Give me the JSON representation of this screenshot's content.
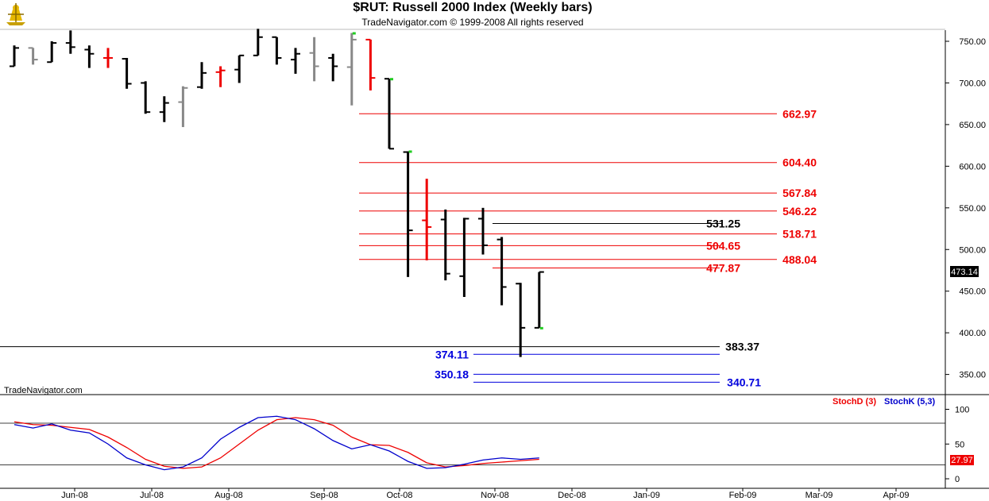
{
  "header": {
    "title": "$RUT:  Russell 2000 Index  (Weekly bars)",
    "subtitle": "TradeNavigator.com © 1999-2008 All rights reserved",
    "watermark": "TradeNavigator.com"
  },
  "chart_data": [
    {
      "type": "ohlc",
      "title": "$RUT:  Russell 2000 Index  (Weekly bars)",
      "ylim": [
        320,
        770
      ],
      "y_ticks": [
        "750.00",
        "700.00",
        "650.00",
        "600.00",
        "550.00",
        "500.00",
        "450.00",
        "400.00",
        "350.00"
      ],
      "last_value_label": "473.14",
      "x_labels": [
        "Jun-08",
        "Jul-08",
        "Aug-08",
        "Sep-08",
        "Oct-08",
        "Nov-08",
        "Dec-08",
        "Jan-09",
        "Feb-09",
        "Mar-09",
        "Apr-09"
      ],
      "colors": {
        "up": "#000000",
        "neutral": "#888888",
        "down": "#ee0000",
        "accent": "#22cc22"
      },
      "bars": [
        {
          "h": 745,
          "l": 720,
          "o": 720,
          "c": 742,
          "color": "black"
        },
        {
          "h": 742,
          "l": 722,
          "o": 742,
          "c": 728,
          "color": "gray"
        },
        {
          "h": 750,
          "l": 725,
          "o": 725,
          "c": 748,
          "color": "black"
        },
        {
          "h": 763,
          "l": 735,
          "o": 748,
          "c": 743,
          "color": "black"
        },
        {
          "h": 745,
          "l": 718,
          "o": 740,
          "c": 735,
          "color": "black"
        },
        {
          "h": 742,
          "l": 718,
          "o": 730,
          "c": 730,
          "color": "red"
        },
        {
          "h": 730,
          "l": 693,
          "o": 729,
          "c": 699,
          "color": "black"
        },
        {
          "h": 702,
          "l": 663,
          "o": 700,
          "c": 665,
          "color": "black"
        },
        {
          "h": 684,
          "l": 653,
          "o": 665,
          "c": 676,
          "color": "black"
        },
        {
          "h": 696,
          "l": 647,
          "o": 677,
          "c": 694,
          "color": "gray"
        },
        {
          "h": 725,
          "l": 693,
          "o": 695,
          "c": 712,
          "color": "black"
        },
        {
          "h": 720,
          "l": 695,
          "o": 713,
          "c": 715,
          "color": "red"
        },
        {
          "h": 733,
          "l": 700,
          "o": 716,
          "c": 733,
          "color": "black"
        },
        {
          "h": 765,
          "l": 733,
          "o": 733,
          "c": 755,
          "color": "black"
        },
        {
          "h": 755,
          "l": 722,
          "o": 755,
          "c": 730,
          "color": "black"
        },
        {
          "h": 742,
          "l": 711,
          "o": 728,
          "c": 735,
          "color": "black"
        },
        {
          "h": 755,
          "l": 702,
          "o": 736,
          "c": 720,
          "color": "gray"
        },
        {
          "h": 735,
          "l": 702,
          "o": 730,
          "c": 720,
          "color": "black"
        },
        {
          "h": 760,
          "l": 673,
          "o": 719,
          "c": 752,
          "color": "gray"
        },
        {
          "h": 752,
          "l": 691,
          "o": 752,
          "c": 706,
          "color": "red"
        },
        {
          "h": 705,
          "l": 621,
          "o": 705,
          "c": 621,
          "color": "black"
        },
        {
          "h": 618,
          "l": 467,
          "o": 617,
          "c": 523,
          "color": "black"
        },
        {
          "h": 585,
          "l": 487,
          "o": 535,
          "c": 527,
          "color": "red"
        },
        {
          "h": 548,
          "l": 463,
          "o": 536,
          "c": 471,
          "color": "black"
        },
        {
          "h": 538,
          "l": 443,
          "o": 468,
          "c": 537,
          "color": "black"
        },
        {
          "h": 550,
          "l": 494,
          "o": 537,
          "c": 505,
          "color": "black"
        },
        {
          "h": 515,
          "l": 433,
          "o": 512,
          "c": 455,
          "color": "black"
        },
        {
          "h": 460,
          "l": 371,
          "o": 459,
          "c": 406,
          "color": "black"
        },
        {
          "h": 473,
          "l": 406,
          "o": 406,
          "c": 473,
          "color": "black"
        }
      ],
      "levels": [
        {
          "value": 662.97,
          "label": "662.97",
          "color": "#ee0000"
        },
        {
          "value": 604.4,
          "label": "604.40",
          "color": "#ee0000"
        },
        {
          "value": 567.84,
          "label": "567.84",
          "color": "#ee0000"
        },
        {
          "value": 546.22,
          "label": "546.22",
          "color": "#ee0000"
        },
        {
          "value": 531.25,
          "label": "531.25",
          "color": "#000000"
        },
        {
          "value": 518.71,
          "label": "518.71",
          "color": "#ee0000"
        },
        {
          "value": 504.65,
          "label": "504.65",
          "color": "#ee0000"
        },
        {
          "value": 488.04,
          "label": "488.04",
          "color": "#ee0000"
        },
        {
          "value": 477.87,
          "label": "477.87",
          "color": "#ee0000"
        },
        {
          "value": 383.37,
          "label": "383.37",
          "color": "#000000"
        },
        {
          "value": 374.11,
          "label": "374.11",
          "color": "#0000dd"
        },
        {
          "value": 350.18,
          "label": "350.18",
          "color": "#0000dd"
        },
        {
          "value": 340.71,
          "label": "340.71",
          "color": "#0000dd"
        }
      ]
    },
    {
      "type": "line",
      "ylim": [
        -10,
        120
      ],
      "y_ticks": [
        "100",
        "50",
        "0"
      ],
      "reference_lines": [
        80,
        20
      ],
      "last_value_label": "27.97",
      "series": [
        {
          "name": "StochD (3)",
          "color": "#ee0000",
          "values": [
            82,
            78,
            77,
            74,
            71,
            60,
            45,
            28,
            18,
            15,
            17,
            30,
            50,
            70,
            85,
            88,
            85,
            77,
            60,
            49,
            48,
            38,
            23,
            17,
            19,
            22,
            24,
            26,
            28
          ]
        },
        {
          "name": "StochK (5,3)",
          "color": "#0000cc",
          "values": [
            78,
            73,
            79,
            70,
            66,
            50,
            30,
            20,
            13,
            17,
            30,
            57,
            74,
            88,
            90,
            85,
            72,
            55,
            43,
            49,
            40,
            25,
            15,
            16,
            21,
            27,
            30,
            28,
            30
          ]
        }
      ]
    }
  ]
}
